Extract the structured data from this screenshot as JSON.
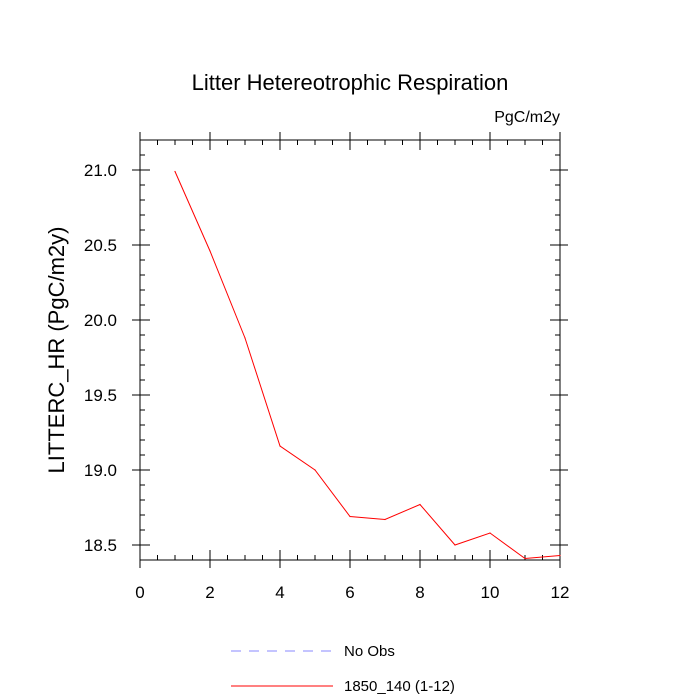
{
  "chart_data": {
    "type": "line",
    "title": "Litter Hetereotrophic Respiration",
    "units_label": "PgC/m2y",
    "xlabel": "",
    "ylabel": "LITTERC_HR  (PgC/m2y)",
    "xlim": [
      0,
      12
    ],
    "ylim": [
      18.4,
      21.2
    ],
    "x_ticks": [
      0,
      2,
      4,
      6,
      8,
      10,
      12
    ],
    "x_tick_labels": [
      "0",
      "2",
      "4",
      "6",
      "8",
      "10",
      "12"
    ],
    "y_ticks": [
      18.5,
      19.0,
      19.5,
      20.0,
      20.5,
      21.0
    ],
    "y_tick_labels": [
      "18.5",
      "19.0",
      "19.5",
      "20.0",
      "20.5",
      "21.0"
    ],
    "grid": false,
    "series": [
      {
        "name": "1850_140 (1-12)",
        "color": "#ff0000",
        "dash": "solid",
        "x": [
          1,
          2,
          3,
          4,
          5,
          6,
          7,
          8,
          9,
          10,
          11,
          12
        ],
        "values": [
          20.99,
          20.46,
          19.88,
          19.16,
          19.0,
          18.69,
          18.67,
          18.77,
          18.5,
          18.58,
          18.41,
          18.43
        ]
      },
      {
        "name": "No Obs",
        "color": "#8888ff",
        "dash": "dashed",
        "x": [],
        "values": []
      }
    ],
    "legend": {
      "position": "bottom",
      "entries": [
        "No Obs",
        "1850_140 (1-12)"
      ]
    }
  }
}
